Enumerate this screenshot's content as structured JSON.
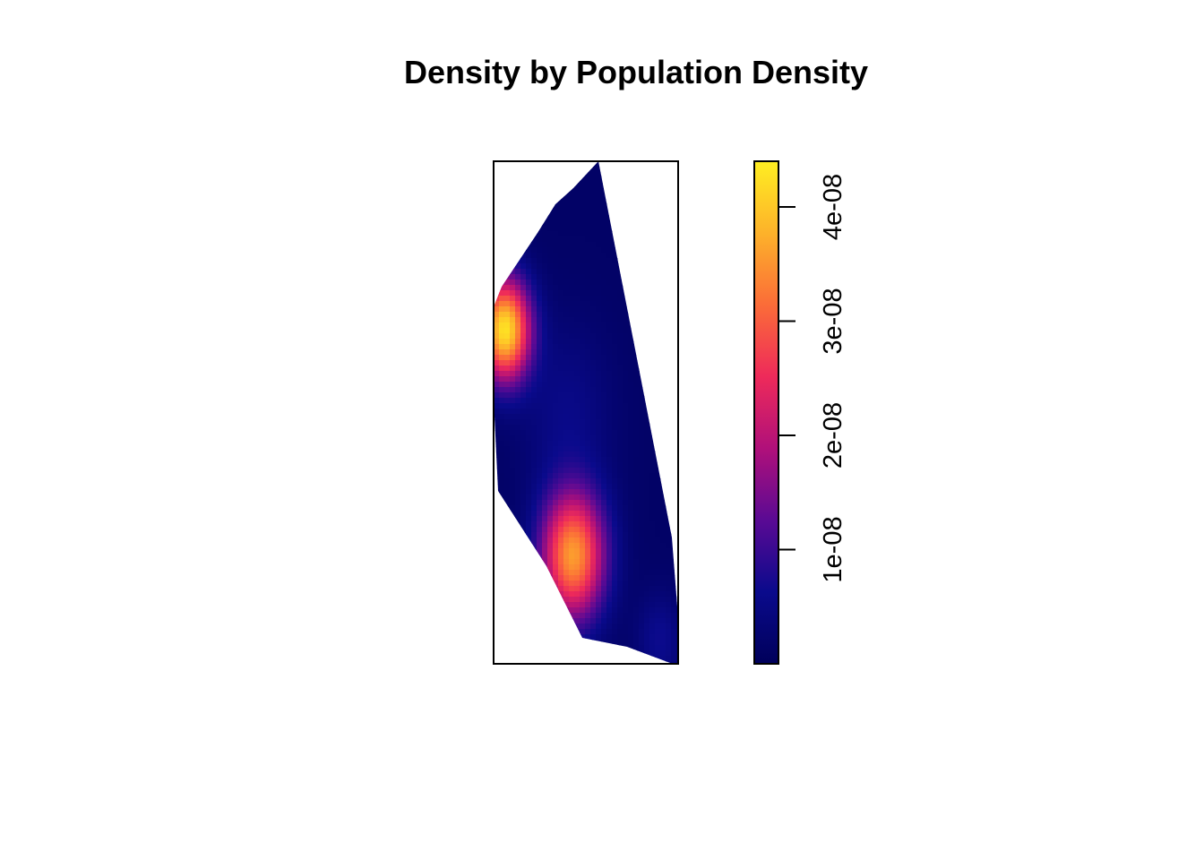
{
  "chart_data": {
    "type": "heatmap",
    "title": "Density by Population Density",
    "xlabel": "",
    "ylabel": "",
    "axes_shown": false,
    "colorbar": {
      "position": "right",
      "range": [
        0,
        4.4e-08
      ],
      "ticks": [
        {
          "value": 1e-08,
          "label": "1e-08"
        },
        {
          "value": 2e-08,
          "label": "2e-08"
        },
        {
          "value": 3e-08,
          "label": "3e-08"
        },
        {
          "value": 4e-08,
          "label": "4e-08"
        }
      ],
      "palette": [
        "#00005a",
        "#0a0a8c",
        "#5a0a94",
        "#b0107a",
        "#ee2a5a",
        "#fb6c38",
        "#fdb22a",
        "#ffee22"
      ]
    },
    "density_peaks": [
      {
        "u": 0.06,
        "v": 0.665,
        "value": 4.1e-08,
        "spread": 0.2
      },
      {
        "u": 0.43,
        "v": 0.215,
        "value": 3.4e-08,
        "spread": 0.25
      },
      {
        "u": 0.4,
        "v": 0.5,
        "value": 4e-09,
        "spread": 0.35
      },
      {
        "u": 0.9,
        "v": 0.05,
        "value": 5e-09,
        "spread": 0.18
      }
    ],
    "base_value": 1.5e-09
  }
}
